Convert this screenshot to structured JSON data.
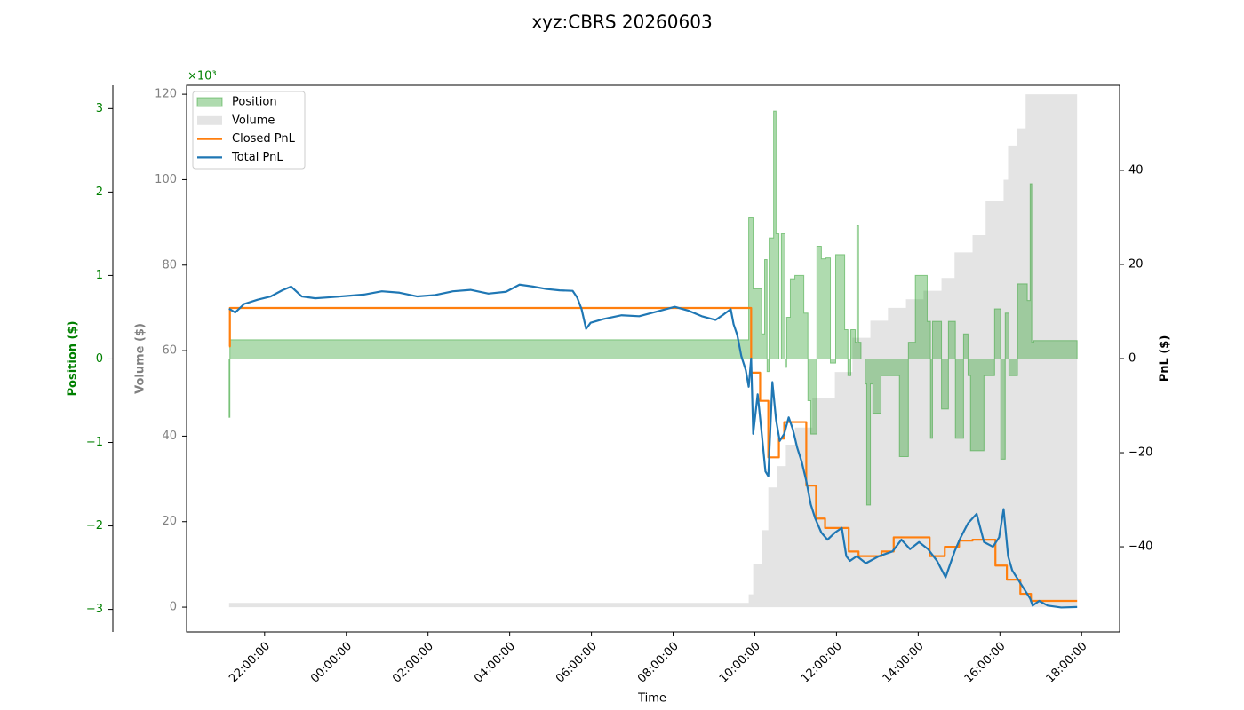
{
  "chart_data": {
    "type": "combo",
    "title": "xyz:CBRS 20260603",
    "xlabel": "Time",
    "xlim": [
      -3.91,
      18.93
    ],
    "xticks": [
      {
        "value": -2,
        "label": "22:00:00"
      },
      {
        "value": 0,
        "label": "00:00:00"
      },
      {
        "value": 2,
        "label": "02:00:00"
      },
      {
        "value": 4,
        "label": "04:00:00"
      },
      {
        "value": 6,
        "label": "06:00:00"
      },
      {
        "value": 8,
        "label": "08:00:00"
      },
      {
        "value": 10,
        "label": "10:00:00"
      },
      {
        "value": 12,
        "label": "12:00:00"
      },
      {
        "value": 14,
        "label": "14:00:00"
      },
      {
        "value": 16,
        "label": "16:00:00"
      },
      {
        "value": 18,
        "label": "18:00:00"
      }
    ],
    "ylabel": "Position ($)",
    "ylabel_color": "#008000",
    "y_multiplier": "×10³",
    "ylim": [
      -3.27,
      3.28
    ],
    "yticks": [
      {
        "value": -3,
        "label": "−3"
      },
      {
        "value": -2,
        "label": "−2"
      },
      {
        "value": -1,
        "label": "−1"
      },
      0,
      1,
      2,
      3
    ],
    "y3label": "Volume ($)",
    "y3label_color": "#808080",
    "y3lim": [
      -5.8,
      122.1
    ],
    "y3ticks": [
      0,
      20,
      40,
      60,
      80,
      100,
      120
    ],
    "y2label": "PnL ($)",
    "y2lim": [
      -58.1,
      58.1
    ],
    "y2ticks": [
      {
        "value": -40,
        "label": "−40"
      },
      {
        "value": -20,
        "label": "−20"
      },
      0,
      20,
      40
    ],
    "legend": "upper left",
    "series": [
      {
        "name": "Position",
        "type": "area",
        "step": true,
        "axis": "y",
        "color": "#2ca02c",
        "x": [
          -2.87,
          -2.85,
          9.85,
          9.96,
          10.17,
          10.24,
          10.3,
          10.35,
          10.46,
          10.52,
          10.59,
          10.65,
          10.74,
          10.78,
          10.87,
          10.98,
          11.2,
          11.3,
          11.37,
          11.52,
          11.63,
          11.74,
          11.85,
          11.98,
          12.09,
          12.2,
          12.28,
          12.35,
          12.46,
          12.5,
          12.54,
          12.6,
          12.7,
          12.74,
          12.83,
          12.89,
          13.09,
          13.54,
          13.76,
          13.93,
          14.22,
          14.3,
          14.35,
          14.57,
          14.74,
          14.91,
          15.11,
          15.22,
          15.28,
          15.61,
          15.87,
          16.02,
          16.13,
          16.22,
          16.43,
          16.67,
          16.74,
          16.78,
          16.83,
          17.89
        ],
        "values": [
          -0.7,
          0.23,
          1.69,
          0.84,
          0.3,
          1.19,
          -0.15,
          1.45,
          2.97,
          1.5,
          0.0,
          1.5,
          -0.1,
          0.5,
          0.96,
          1.0,
          0.55,
          -0.5,
          -0.9,
          1.35,
          1.2,
          1.21,
          -0.05,
          1.25,
          1.25,
          0.35,
          -0.2,
          0.35,
          0.2,
          1.6,
          0.2,
          0.0,
          -0.3,
          -1.75,
          -0.3,
          -0.65,
          -0.2,
          -1.17,
          0.2,
          1.0,
          0.45,
          -0.95,
          0.45,
          -0.6,
          0.45,
          -0.95,
          0.3,
          -0.2,
          -1.1,
          -0.2,
          0.6,
          -1.2,
          0.55,
          -0.2,
          0.9,
          0.7,
          2.1,
          0.2,
          0.22,
          0.22
        ]
      },
      {
        "name": "Volume",
        "type": "area",
        "step": true,
        "axis": "y3",
        "color": "#bbbbbb",
        "x": [
          -2.87,
          9.85,
          9.96,
          10.17,
          10.33,
          10.54,
          10.76,
          10.98,
          11.41,
          11.96,
          12.39,
          12.83,
          13.26,
          13.7,
          14.13,
          14.57,
          14.89,
          15.33,
          15.65,
          16.09,
          16.2,
          16.41,
          16.63,
          16.85,
          17.89
        ],
        "values": [
          1,
          3,
          10,
          18,
          28,
          33,
          38,
          42,
          49,
          55,
          63,
          67,
          70,
          72,
          74,
          77,
          83,
          87,
          95,
          100,
          108,
          112,
          120,
          120,
          120
        ]
      },
      {
        "name": "Closed PnL",
        "type": "line",
        "step": true,
        "axis": "y2",
        "color": "#ff7f0e",
        "x": [
          -2.87,
          -2.85,
          9.91,
          10.13,
          10.33,
          10.59,
          10.72,
          11.26,
          11.5,
          11.72,
          12.3,
          12.54,
          13.1,
          13.4,
          14.28,
          14.65,
          15.0,
          15.33,
          15.89,
          16.17,
          16.5,
          16.76,
          17.89
        ],
        "values": [
          2.6,
          10.75,
          -3,
          -9,
          -21,
          -17,
          -13.5,
          -27,
          -34,
          -36,
          -41,
          -42,
          -41,
          -38,
          -42,
          -40,
          -38.7,
          -38.5,
          -44,
          -47,
          -50,
          -51.5,
          -51.5
        ]
      },
      {
        "name": "Total PnL",
        "type": "line",
        "step": false,
        "axis": "y2",
        "color": "#1f77b4",
        "x": [
          -2.87,
          -2.72,
          -2.5,
          -2.17,
          -1.85,
          -1.57,
          -1.35,
          -1.09,
          -0.76,
          -0.43,
          0,
          0.43,
          0.87,
          1.3,
          1.74,
          2.17,
          2.61,
          3.04,
          3.48,
          3.91,
          4.24,
          4.57,
          4.89,
          5.22,
          5.54,
          5.65,
          5.76,
          5.87,
          5.98,
          6.3,
          6.74,
          7.17,
          7.61,
          8.04,
          8.37,
          8.7,
          9.04,
          9.24,
          9.41,
          9.48,
          9.57,
          9.67,
          9.78,
          9.85,
          9.91,
          9.96,
          10.07,
          10.17,
          10.26,
          10.33,
          10.43,
          10.52,
          10.61,
          10.72,
          10.83,
          10.93,
          11.04,
          11.15,
          11.26,
          11.37,
          11.48,
          11.63,
          11.78,
          11.96,
          12.13,
          12.24,
          12.33,
          12.5,
          12.72,
          13.04,
          13.37,
          13.59,
          13.8,
          14.02,
          14.24,
          14.46,
          14.67,
          14.89,
          15.04,
          15.22,
          15.43,
          15.61,
          15.83,
          15.98,
          16.09,
          16.2,
          16.3,
          16.52,
          16.74,
          16.8,
          16.96,
          17.17,
          17.5,
          17.89
        ],
        "values": [
          10.6,
          9.8,
          11.6,
          12.5,
          13.2,
          14.5,
          15.3,
          13.2,
          12.8,
          13.0,
          13.3,
          13.6,
          14.3,
          14.0,
          13.2,
          13.5,
          14.3,
          14.6,
          13.8,
          14.2,
          15.7,
          15.3,
          14.8,
          14.5,
          14.4,
          13.0,
          10.5,
          6.3,
          7.6,
          8.4,
          9.2,
          9.0,
          10.0,
          11.0,
          10.2,
          9.0,
          8.2,
          9.4,
          10.5,
          7.3,
          5.0,
          0.5,
          -2.5,
          -6,
          0,
          -16,
          -7.6,
          -16,
          -24,
          -25,
          -5,
          -13,
          -17.5,
          -16,
          -12.5,
          -15,
          -19,
          -22,
          -26,
          -31,
          -34,
          -37,
          -38.5,
          -37,
          -36,
          -42,
          -43,
          -42,
          -43.5,
          -42,
          -41,
          -38.5,
          -40.5,
          -39,
          -40.5,
          -43,
          -46.5,
          -41,
          -38,
          -35,
          -33,
          -39,
          -40,
          -38,
          -32,
          -42,
          -45,
          -48,
          -51,
          -52.5,
          -51.5,
          -52.5,
          -52.9,
          -52.8
        ]
      }
    ]
  }
}
